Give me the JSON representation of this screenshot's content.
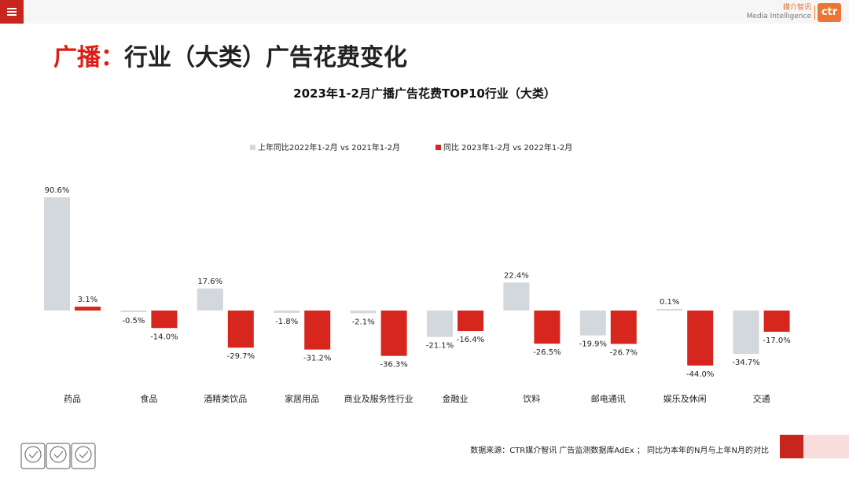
{
  "header": {
    "brand_cn": "媒介智讯",
    "brand_en": "Media Intelligence",
    "brand_badge": "ctr"
  },
  "page_title": {
    "prefix": "广播：",
    "main": "行业（大类）广告花费变化"
  },
  "colors": {
    "series1": "#d3d8dc",
    "series2": "#d7261e",
    "accent": "#e01b14"
  },
  "chart_data": {
    "type": "bar",
    "title": "2023年1-2月广播广告花费TOP10行业（大类）",
    "categories": [
      "药品",
      "食品",
      "酒精类饮品",
      "家居用品",
      "商业及服务性行业",
      "金融业",
      "饮料",
      "邮电通讯",
      "娱乐及休闲",
      "交通"
    ],
    "series": [
      {
        "name": "上年同比2022年1-2月  vs  2021年1-2月",
        "values": [
          90.6,
          -0.5,
          17.6,
          -1.8,
          -2.1,
          -21.1,
          22.4,
          -19.9,
          0.1,
          -34.7
        ],
        "labels": [
          "90.6%",
          "-0.5%",
          "17.6%",
          "-1.8%",
          "-2.1%",
          "-21.1%",
          "22.4%",
          "-19.9%",
          "0.1%",
          "-34.7%"
        ]
      },
      {
        "name": "同比 2023年1-2月  vs  2022年1-2月",
        "values": [
          3.1,
          -14.0,
          -29.7,
          -31.2,
          -36.3,
          -16.4,
          -26.5,
          -26.7,
          -44.0,
          -17.0
        ],
        "labels": [
          "3.1%",
          "-14.0%",
          "-29.7%",
          "-31.2%",
          "-36.3%",
          "-16.4%",
          "-26.5%",
          "-26.7%",
          "-44.0%",
          "-17.0%"
        ]
      }
    ],
    "xlabel": "",
    "ylabel": "",
    "ylim": [
      -50,
      100
    ],
    "grid": false,
    "legend": "top-center"
  },
  "footer": {
    "source": "数据来源：CTR媒介智讯 广告监测数据库AdEx ；  同比为本年的N月与上年N月的对比"
  }
}
